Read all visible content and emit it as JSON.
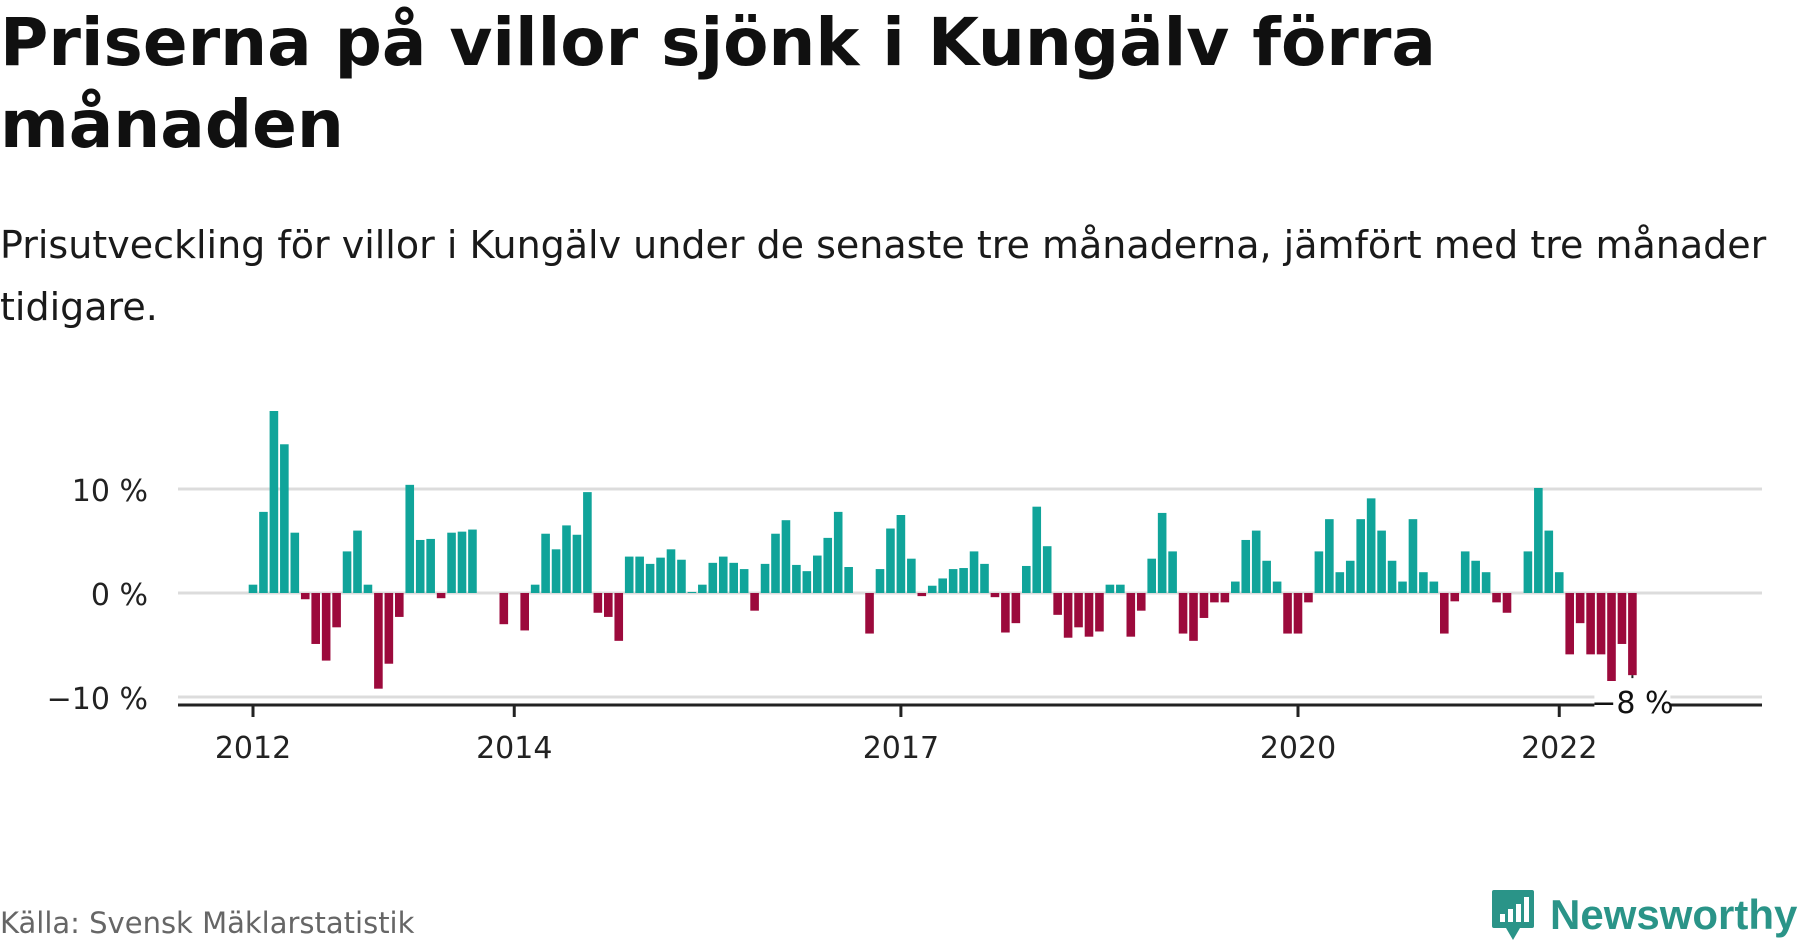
{
  "title": "Priserna på villor sjönk i Kungälv förra månaden",
  "subtitle": "Prisutveckling för villor i Kungälv under de senaste tre månaderna, jämfört med tre månader tidigare.",
  "source": "Källa: Svensk Mäklarstatistik",
  "brand": {
    "name": "Newsworthy",
    "icon": "newsworthy-logo-icon"
  },
  "colors": {
    "positive": "#10a49a",
    "negative": "#9c0a3c",
    "grid": "#dcdcdc",
    "axis": "#222222"
  },
  "chart_data": {
    "type": "bar",
    "title": "Priserna på villor sjönk i Kungälv förra månaden",
    "xlabel": "",
    "ylabel": "",
    "unit": "%",
    "ylim": [
      -11,
      20
    ],
    "yticks": [
      {
        "value": 10,
        "label": "10 %"
      },
      {
        "value": 0,
        "label": "0 %"
      },
      {
        "value": -10,
        "label": "−10 %"
      }
    ],
    "xticks": [
      {
        "index": 0,
        "label": "2012"
      },
      {
        "index": 25,
        "label": "2014"
      },
      {
        "index": 62,
        "label": "2017"
      },
      {
        "index": 100,
        "label": "2020"
      },
      {
        "index": 125,
        "label": "2022"
      }
    ],
    "grid": true,
    "last_value_label": "−8 %",
    "values": [
      0.8,
      7.8,
      17.5,
      14.3,
      5.8,
      -0.6,
      -4.9,
      -6.5,
      -3.3,
      4.0,
      6.0,
      0.8,
      -9.2,
      -6.8,
      -2.3,
      10.4,
      5.1,
      5.2,
      -0.5,
      5.8,
      5.9,
      6.1,
      null,
      null,
      -3.0,
      null,
      -3.6,
      0.8,
      5.7,
      4.2,
      6.5,
      5.6,
      9.7,
      -1.9,
      -2.3,
      -4.6,
      3.5,
      3.5,
      2.8,
      3.4,
      4.2,
      3.2,
      0.1,
      0.8,
      2.9,
      3.5,
      2.9,
      2.3,
      -1.7,
      2.8,
      5.7,
      7.0,
      2.7,
      2.1,
      3.6,
      5.3,
      7.8,
      2.5,
      null,
      -3.9,
      2.3,
      6.2,
      7.5,
      3.3,
      -0.3,
      0.7,
      1.4,
      2.3,
      2.4,
      4.0,
      2.8,
      -0.4,
      -3.8,
      -2.9,
      2.6,
      8.3,
      4.5,
      -2.1,
      -4.3,
      -3.3,
      -4.2,
      -3.7,
      0.8,
      0.8,
      -4.2,
      -1.7,
      3.3,
      7.7,
      4.0,
      -3.9,
      -4.6,
      -2.4,
      -0.9,
      -0.9,
      1.1,
      5.1,
      6.0,
      3.1,
      1.1,
      -3.9,
      -3.9,
      -0.9,
      4.0,
      7.1,
      2.0,
      3.1,
      7.1,
      9.1,
      6.0,
      3.1,
      1.1,
      7.1,
      2.0,
      1.1,
      -3.9,
      -0.8,
      4.0,
      3.1,
      2.0,
      -0.9,
      -1.9,
      null,
      4.0,
      10.1,
      6.0,
      2.0,
      -5.9,
      -2.9,
      -5.9,
      -5.9,
      -8.9,
      -4.9,
      -7.9
    ]
  }
}
